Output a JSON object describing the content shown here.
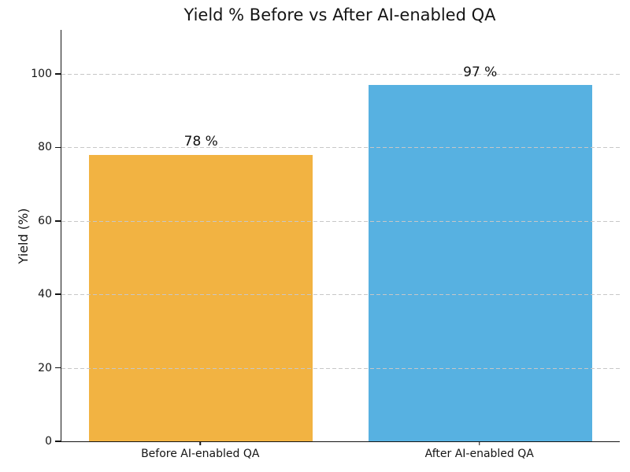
{
  "chart_data": {
    "type": "bar",
    "title": "Yield % Before vs After AI-enabled QA",
    "categories": [
      "Before AI-enabled QA",
      "After AI-enabled QA"
    ],
    "values": [
      78,
      97
    ],
    "bar_labels": [
      "78 %",
      "97 %"
    ],
    "bar_colors": [
      "#F2B342",
      "#57B1E1"
    ],
    "xlabel": "",
    "ylabel": "Yield (%)",
    "ylim": [
      0,
      112
    ],
    "yticks": [
      0,
      20,
      40,
      60,
      80,
      100
    ],
    "grid": "horizontal-dashed",
    "gridline_color": "#c7c7c7",
    "axis_color": "#141414",
    "legend": "none",
    "background_color": "#ffffff"
  }
}
